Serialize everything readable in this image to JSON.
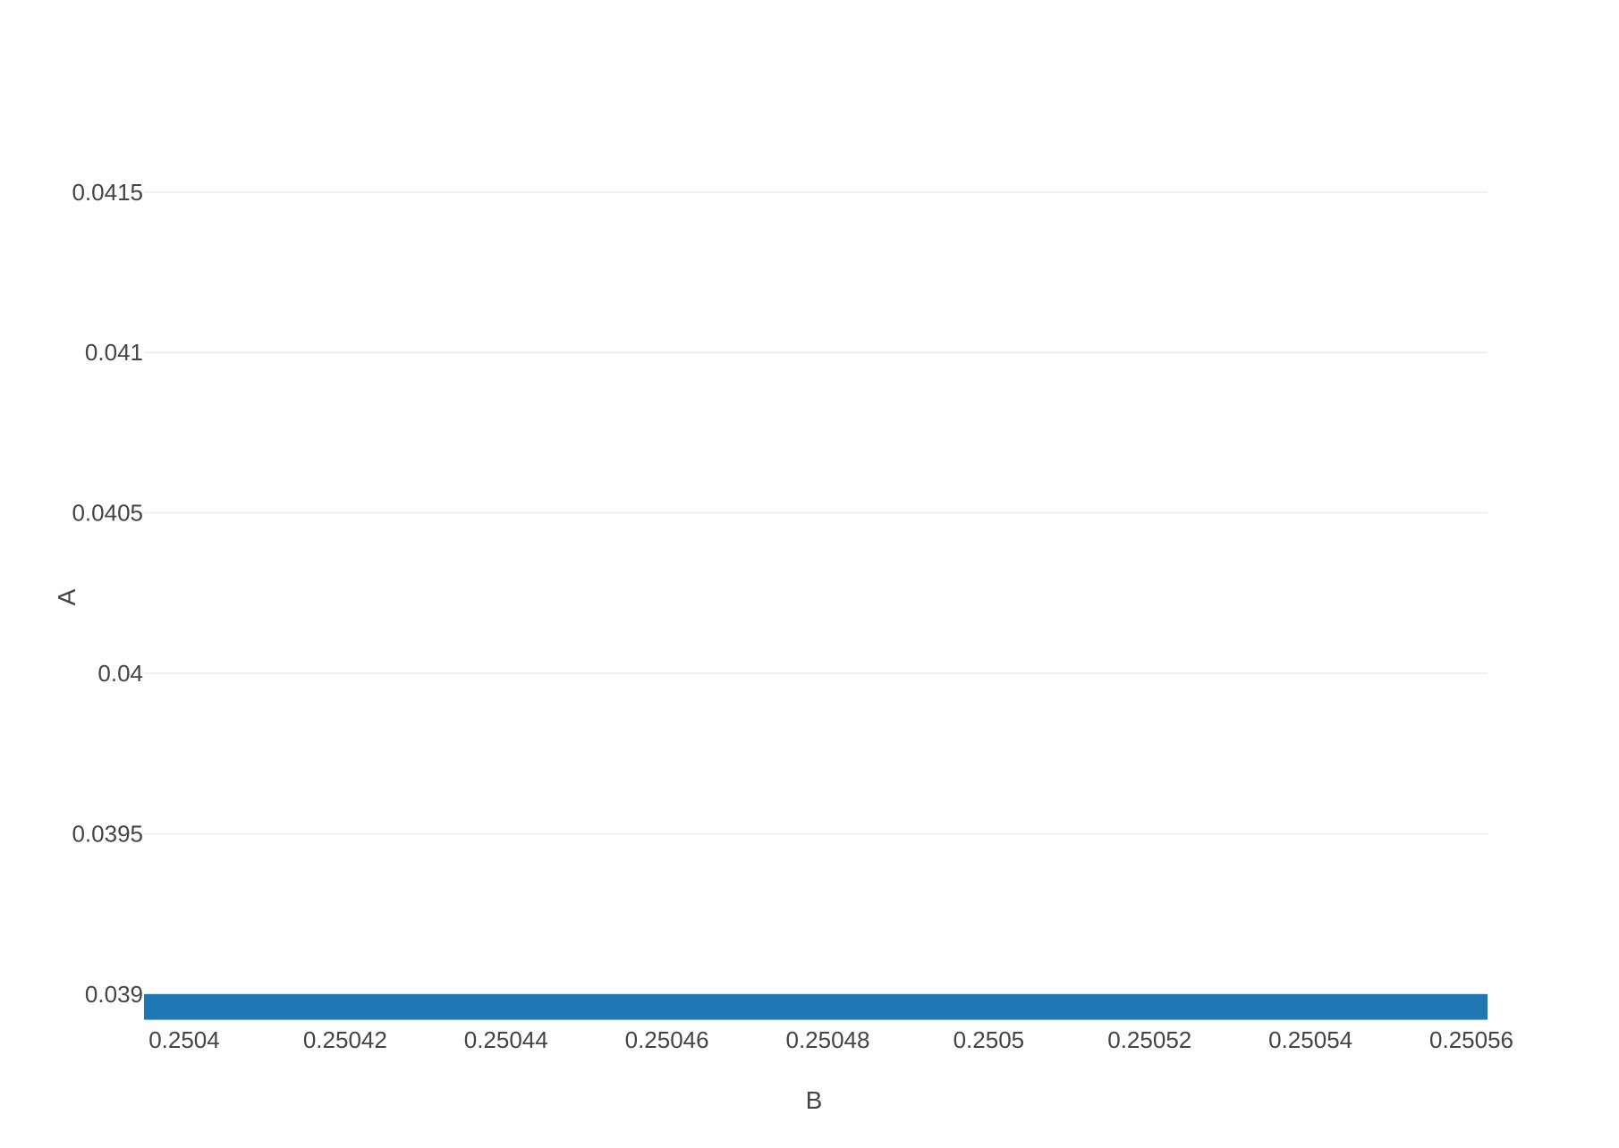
{
  "chart_data": {
    "type": "bar",
    "orientation": "horizontal",
    "xlabel": "B",
    "ylabel": "A",
    "xlim": [
      0.250395,
      0.250562
    ],
    "ylim": [
      0.03893,
      0.04182
    ],
    "x_ticks": [
      0.2504,
      0.25042,
      0.25044,
      0.25046,
      0.25048,
      0.2505,
      0.25052,
      0.25054,
      0.25056
    ],
    "x_tick_labels": [
      "0.2504",
      "0.25042",
      "0.25044",
      "0.25046",
      "0.25048",
      "0.2505",
      "0.25052",
      "0.25054",
      "0.25056"
    ],
    "y_ticks": [
      0.039,
      0.0395,
      0.04,
      0.0405,
      0.041,
      0.0415
    ],
    "y_tick_labels": [
      "0.039",
      "0.0395",
      "0.04",
      "0.0405",
      "0.041",
      "0.0415"
    ],
    "series": [
      {
        "bars": [
          {
            "y": 0.03896,
            "x_start": 0.250395,
            "x_end": 0.250562,
            "height": 8e-05
          }
        ]
      }
    ],
    "colors": {
      "bar": "#1f77b4",
      "grid": "#ebebeb",
      "text": "#444444"
    },
    "grid": true,
    "legend": "none"
  }
}
